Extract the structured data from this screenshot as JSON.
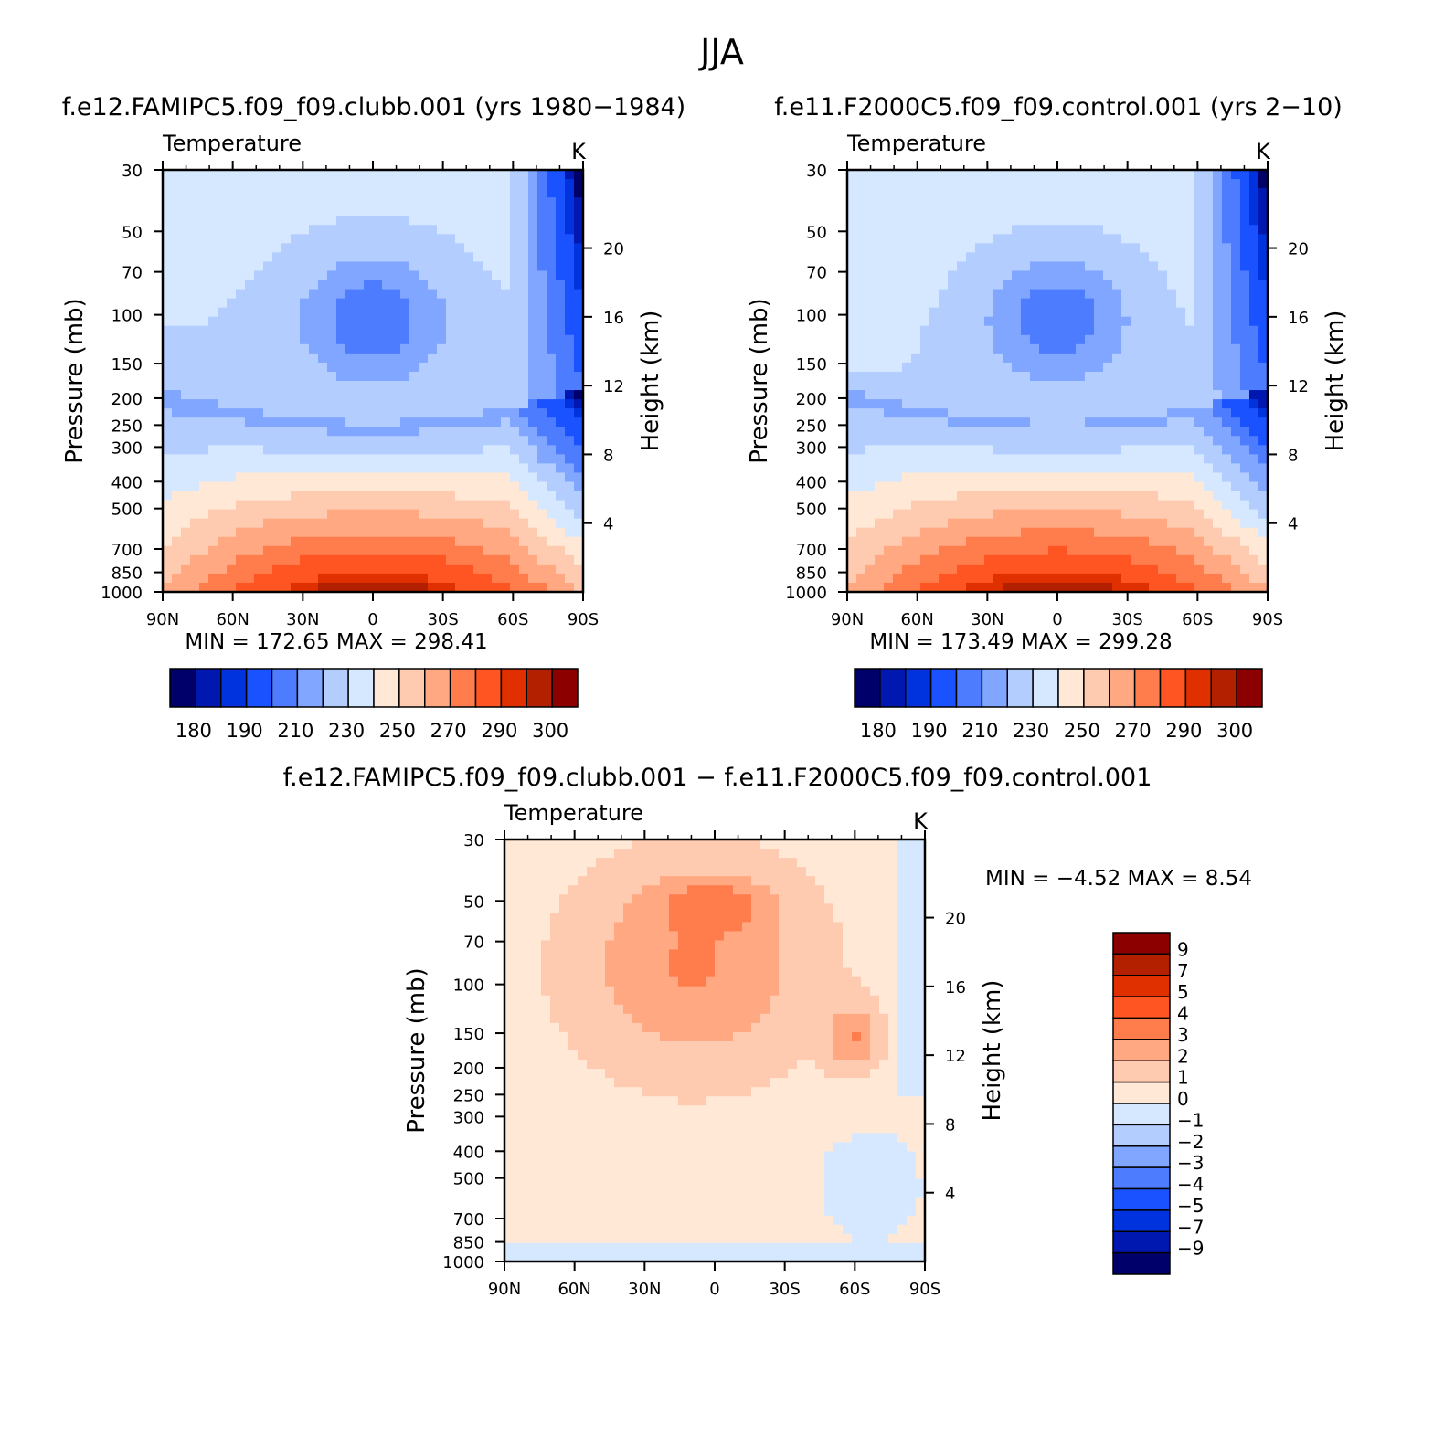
{
  "page_title": "JJA",
  "chart_data": [
    {
      "type": "heatmap",
      "title": "f.e12.FAMIPC5.f09_f09.clubb.001 (yrs 1980-1984)",
      "left_string": "Temperature",
      "right_string": "K",
      "xlabel": "",
      "ylabel": "Pressure (mb)",
      "y2label": "Height (km)",
      "x_ticks": [
        "90N",
        "60N",
        "30N",
        "0",
        "30S",
        "60S",
        "90S"
      ],
      "y_ticks": [
        30,
        50,
        70,
        100,
        150,
        200,
        250,
        300,
        400,
        500,
        700,
        850,
        1000
      ],
      "y_scale": "log",
      "ylim": [
        1000,
        30
      ],
      "y2_ticks": [
        4,
        8,
        12,
        16,
        20
      ],
      "stats": "MIN = 172.65   MAX = 298.41",
      "min": 172.65,
      "max": 298.41,
      "colorbar": {
        "orientation": "horizontal",
        "labels": [
          "180",
          "190",
          "210",
          "230",
          "250",
          "270",
          "290",
          "300"
        ],
        "colors": [
          "#00006b",
          "#0018b0",
          "#0033dd",
          "#1a52ff",
          "#4d7cff",
          "#80a6ff",
          "#b3cdff",
          "#d6e8ff",
          "#ffe8d6",
          "#ffcbb0",
          "#ffa882",
          "#ff7d4d",
          "#ff5522",
          "#e03000",
          "#b32000",
          "#8c0000"
        ]
      }
    },
    {
      "type": "heatmap",
      "title": "f.e11.F2000C5.f09_f09.control.001 (yrs 2-10)",
      "left_string": "Temperature",
      "right_string": "K",
      "xlabel": "",
      "ylabel": "Pressure (mb)",
      "y2label": "Height (km)",
      "x_ticks": [
        "90N",
        "60N",
        "30N",
        "0",
        "30S",
        "60S",
        "90S"
      ],
      "y_ticks": [
        30,
        50,
        70,
        100,
        150,
        200,
        250,
        300,
        400,
        500,
        700,
        850,
        1000
      ],
      "y_scale": "log",
      "ylim": [
        1000,
        30
      ],
      "y2_ticks": [
        4,
        8,
        12,
        16,
        20
      ],
      "stats": "MIN = 173.49   MAX = 299.28",
      "min": 173.49,
      "max": 299.28,
      "colorbar": {
        "orientation": "horizontal",
        "labels": [
          "180",
          "190",
          "210",
          "230",
          "250",
          "270",
          "290",
          "300"
        ],
        "colors": [
          "#00006b",
          "#0018b0",
          "#0033dd",
          "#1a52ff",
          "#4d7cff",
          "#80a6ff",
          "#b3cdff",
          "#d6e8ff",
          "#ffe8d6",
          "#ffcbb0",
          "#ffa882",
          "#ff7d4d",
          "#ff5522",
          "#e03000",
          "#b32000",
          "#8c0000"
        ]
      }
    },
    {
      "type": "heatmap",
      "title": "f.e12.FAMIPC5.f09_f09.clubb.001 - f.e11.F2000C5.f09_f09.control.001",
      "left_string": "Temperature",
      "right_string": "K",
      "xlabel": "",
      "ylabel": "Pressure (mb)",
      "y2label": "Height (km)",
      "x_ticks": [
        "90N",
        "60N",
        "30N",
        "0",
        "30S",
        "60S",
        "90S"
      ],
      "y_ticks": [
        30,
        50,
        70,
        100,
        150,
        200,
        250,
        300,
        400,
        500,
        700,
        850,
        1000
      ],
      "y_scale": "log",
      "ylim": [
        1000,
        30
      ],
      "y2_ticks": [
        4,
        8,
        12,
        16,
        20
      ],
      "stats": "MIN =   -4.52   MAX =    8.54",
      "min": -4.52,
      "max": 8.54,
      "colorbar": {
        "orientation": "vertical",
        "labels": [
          "9",
          "7",
          "5",
          "4",
          "3",
          "2",
          "1",
          "0",
          "-1",
          "-2",
          "-3",
          "-4",
          "-5",
          "-7",
          "-9"
        ],
        "colors": [
          "#8c0000",
          "#b32000",
          "#e03000",
          "#ff5522",
          "#ff7d4d",
          "#ffa882",
          "#ffcbb0",
          "#ffe8d6",
          "#d6e8ff",
          "#b3cdff",
          "#80a6ff",
          "#4d7cff",
          "#1a52ff",
          "#0033dd",
          "#0018b0",
          "#00006b"
        ]
      }
    }
  ]
}
